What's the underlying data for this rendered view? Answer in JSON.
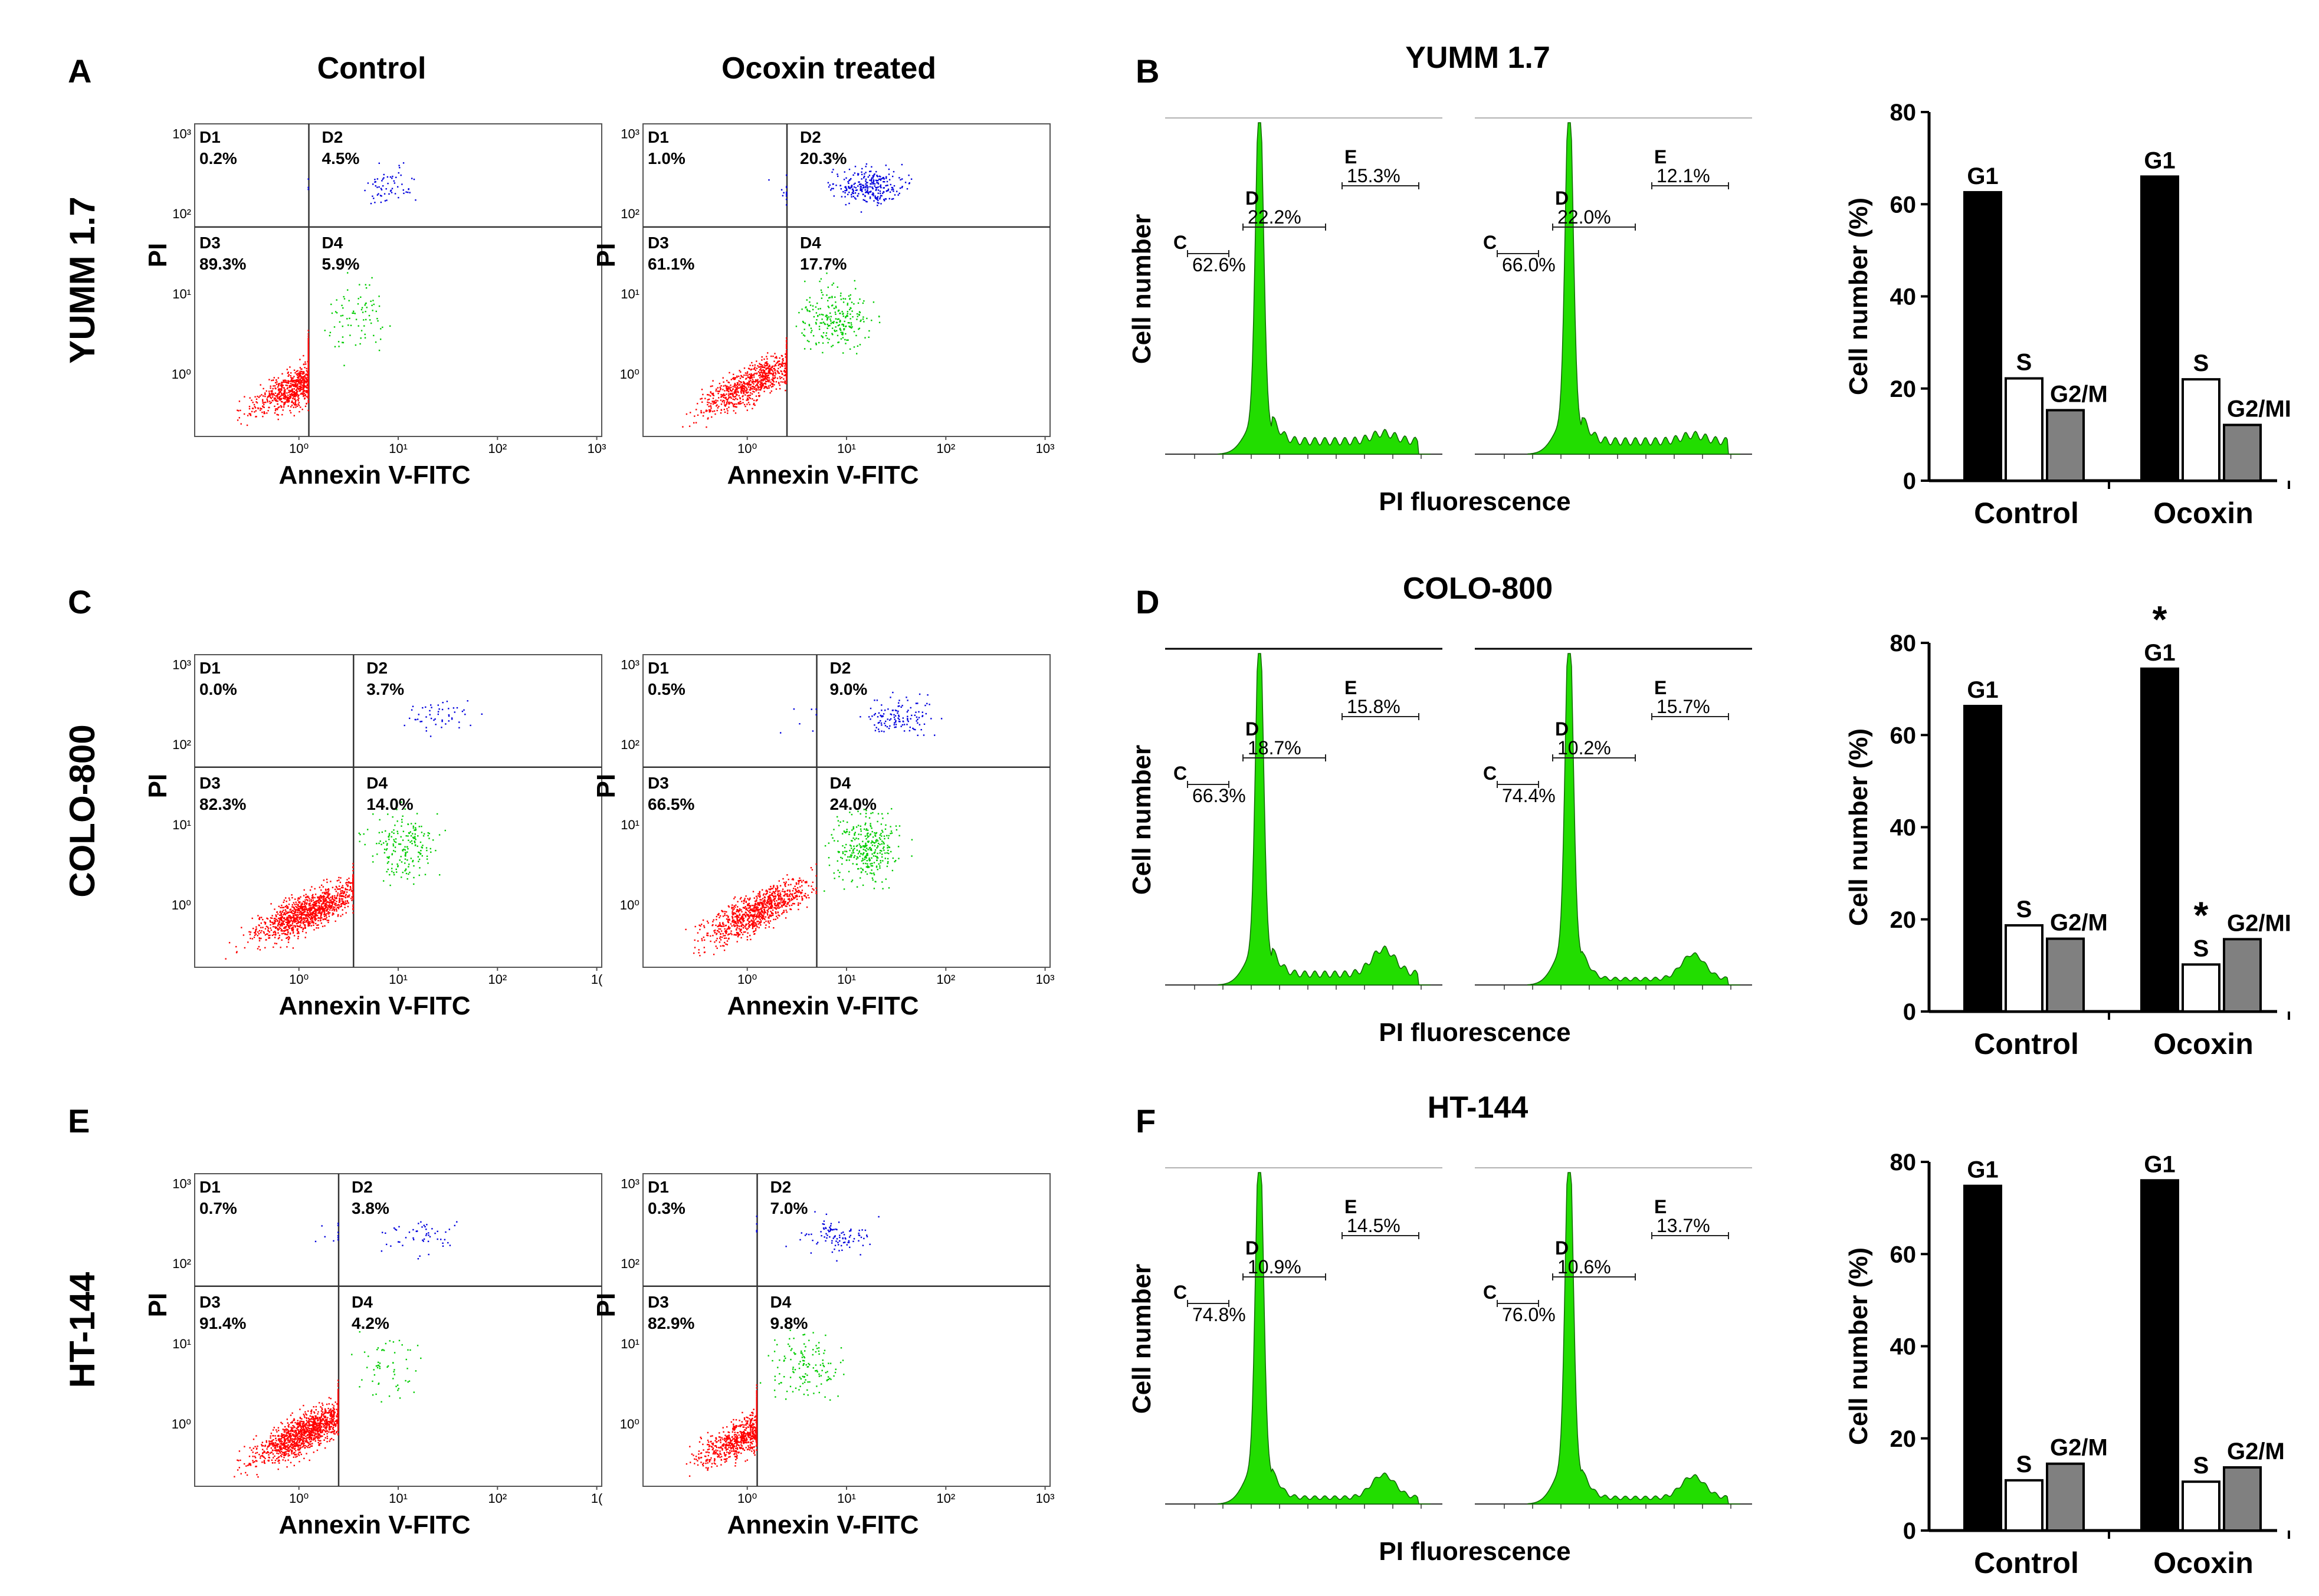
{
  "chart_data": {
    "type": "composite",
    "columns": {
      "apoptosis_control": "Control",
      "apoptosis_treated": "Ocoxin treated"
    },
    "flow_axes": {
      "x_label": "Annexin V-FITC",
      "y_label": "PI",
      "tick_labels": [
        "10⁰",
        "10¹",
        "10²",
        "10³"
      ],
      "truncated_tick": "1("
    },
    "histogram_axes": {
      "x_label": "PI fluorescence",
      "y_label": "Cell number"
    },
    "bar_axes": {
      "ylabel": "Cell number (%)",
      "ylim": [
        0,
        80
      ],
      "yticks": [
        "0",
        "20",
        "40",
        "60",
        "80"
      ],
      "categories": [
        "Control",
        "Ocoxin"
      ],
      "bar_labels": [
        "G1",
        "S",
        "G2/M"
      ],
      "clipped_label": "G2/MI",
      "colors": {
        "G1": "#000000",
        "S": "#ffffff",
        "G2/M": "#808080"
      }
    },
    "rows": [
      {
        "cell_line": "YUMM 1.7",
        "apoptosis_panel": "A",
        "cycle_panel": "B",
        "flow": [
          {
            "condition": "Control",
            "quadrants": [
              {
                "name": "D1",
                "value": "0.2%"
              },
              {
                "name": "D2",
                "value": "4.5%"
              },
              {
                "name": "D3",
                "value": "89.3%"
              },
              {
                "name": "D4",
                "value": "5.9%"
              }
            ]
          },
          {
            "condition": "Ocoxin treated",
            "quadrants": [
              {
                "name": "D1",
                "value": "1.0%"
              },
              {
                "name": "D2",
                "value": "20.3%"
              },
              {
                "name": "D3",
                "value": "61.1%"
              },
              {
                "name": "D4",
                "value": "17.7%"
              }
            ]
          }
        ],
        "histograms": [
          {
            "condition": "Control",
            "gates": [
              {
                "name": "C",
                "value": "62.6%"
              },
              {
                "name": "D",
                "value": "22.2%"
              },
              {
                "name": "E",
                "value": "15.3%"
              }
            ]
          },
          {
            "condition": "Ocoxin",
            "gates": [
              {
                "name": "C",
                "value": "66.0%"
              },
              {
                "name": "D",
                "value": "22.0%"
              },
              {
                "name": "E",
                "value": "12.1%"
              }
            ]
          }
        ],
        "bars": {
          "series": [
            {
              "name": "G1",
              "values": [
                62.6,
                66.0
              ]
            },
            {
              "name": "S",
              "values": [
                22.2,
                22.0
              ]
            },
            {
              "name": "G2/M",
              "values": [
                15.3,
                12.1
              ]
            }
          ],
          "significance": {
            "G1": [
              "",
              ""
            ],
            "S": [
              "",
              ""
            ]
          }
        }
      },
      {
        "cell_line": "COLO-800",
        "apoptosis_panel": "C",
        "cycle_panel": "D",
        "flow": [
          {
            "condition": "Control",
            "quadrants": [
              {
                "name": "D1",
                "value": "0.0%"
              },
              {
                "name": "D2",
                "value": "3.7%"
              },
              {
                "name": "D3",
                "value": "82.3%"
              },
              {
                "name": "D4",
                "value": "14.0%"
              }
            ]
          },
          {
            "condition": "Ocoxin treated",
            "quadrants": [
              {
                "name": "D1",
                "value": "0.5%"
              },
              {
                "name": "D2",
                "value": "9.0%"
              },
              {
                "name": "D3",
                "value": "66.5%"
              },
              {
                "name": "D4",
                "value": "24.0%"
              }
            ]
          }
        ],
        "histograms": [
          {
            "condition": "Control",
            "gates": [
              {
                "name": "C",
                "value": "66.3%"
              },
              {
                "name": "D",
                "value": "18.7%"
              },
              {
                "name": "E",
                "value": "15.8%"
              }
            ]
          },
          {
            "condition": "Ocoxin",
            "gates": [
              {
                "name": "C",
                "value": "74.4%"
              },
              {
                "name": "D",
                "value": "10.2%"
              },
              {
                "name": "E",
                "value": "15.7%"
              }
            ]
          }
        ],
        "bars": {
          "series": [
            {
              "name": "G1",
              "values": [
                66.3,
                74.4
              ]
            },
            {
              "name": "S",
              "values": [
                18.7,
                10.2
              ]
            },
            {
              "name": "G2/M",
              "values": [
                15.8,
                15.7
              ]
            }
          ],
          "significance": {
            "G1": [
              "",
              "*"
            ],
            "S": [
              "",
              "*"
            ]
          }
        }
      },
      {
        "cell_line": "HT-144",
        "apoptosis_panel": "E",
        "cycle_panel": "F",
        "flow": [
          {
            "condition": "Control",
            "quadrants": [
              {
                "name": "D1",
                "value": "0.7%"
              },
              {
                "name": "D2",
                "value": "3.8%"
              },
              {
                "name": "D3",
                "value": "91.4%"
              },
              {
                "name": "D4",
                "value": "4.2%"
              }
            ]
          },
          {
            "condition": "Ocoxin treated",
            "quadrants": [
              {
                "name": "D1",
                "value": "0.3%"
              },
              {
                "name": "D2",
                "value": "7.0%"
              },
              {
                "name": "D3",
                "value": "82.9%"
              },
              {
                "name": "D4",
                "value": "9.8%"
              }
            ]
          }
        ],
        "histograms": [
          {
            "condition": "Control",
            "gates": [
              {
                "name": "C",
                "value": "74.8%"
              },
              {
                "name": "D",
                "value": "10.9%"
              },
              {
                "name": "E",
                "value": "14.5%"
              }
            ]
          },
          {
            "condition": "Ocoxin",
            "gates": [
              {
                "name": "C",
                "value": "76.0%"
              },
              {
                "name": "D",
                "value": "10.6%"
              },
              {
                "name": "E",
                "value": "13.7%"
              }
            ]
          }
        ],
        "bars": {
          "series": [
            {
              "name": "G1",
              "values": [
                74.8,
                76.0
              ]
            },
            {
              "name": "S",
              "values": [
                10.9,
                10.6
              ]
            },
            {
              "name": "G2/M",
              "values": [
                14.5,
                13.7
              ]
            }
          ],
          "significance": {
            "G1": [
              "",
              ""
            ],
            "S": [
              "",
              ""
            ]
          }
        }
      }
    ]
  },
  "colors": {
    "live": "#ff0000",
    "early_apoptotic": "#00cc00",
    "late_apoptotic": "#0000dd",
    "histogram_fill": "#22dd00",
    "axis": "#333333"
  }
}
